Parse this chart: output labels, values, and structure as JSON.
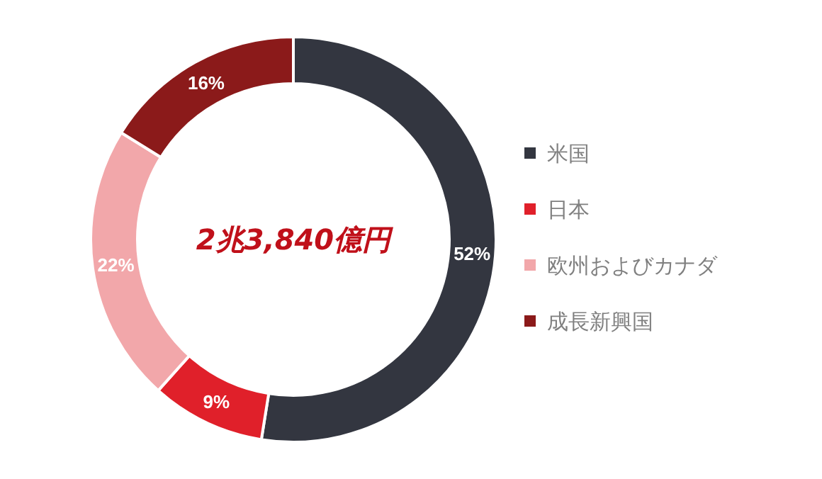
{
  "chart_data": {
    "type": "donut",
    "categories": [
      "米国",
      "日本",
      "欧州およびカナダ",
      "成長新興国"
    ],
    "values": [
      52,
      9,
      22,
      16
    ],
    "colors": [
      "#333640",
      "#e0202a",
      "#f2a7aa",
      "#8b1a1a"
    ],
    "value_labels": [
      "52%",
      "9%",
      "22%",
      "16%"
    ],
    "annotations": [
      "2兆3,840億円"
    ],
    "legend": "right"
  }
}
